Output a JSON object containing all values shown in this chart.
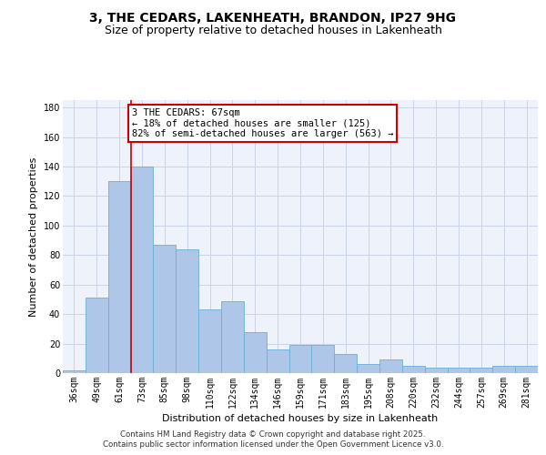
{
  "title": "3, THE CEDARS, LAKENHEATH, BRANDON, IP27 9HG",
  "subtitle": "Size of property relative to detached houses in Lakenheath",
  "xlabel": "Distribution of detached houses by size in Lakenheath",
  "ylabel": "Number of detached properties",
  "bar_labels": [
    "36sqm",
    "49sqm",
    "61sqm",
    "73sqm",
    "85sqm",
    "98sqm",
    "110sqm",
    "122sqm",
    "134sqm",
    "146sqm",
    "159sqm",
    "171sqm",
    "183sqm",
    "195sqm",
    "208sqm",
    "220sqm",
    "232sqm",
    "244sqm",
    "257sqm",
    "269sqm",
    "281sqm"
  ],
  "bar_values": [
    2,
    51,
    130,
    140,
    87,
    84,
    43,
    49,
    28,
    16,
    19,
    19,
    13,
    6,
    9,
    5,
    4,
    4,
    4,
    5,
    5
  ],
  "bar_color": "#aec6e8",
  "bar_edgecolor": "#6aafd6",
  "bar_linewidth": 0.6,
  "red_line_x": 2.5,
  "annotation_text": "3 THE CEDARS: 67sqm\n← 18% of detached houses are smaller (125)\n82% of semi-detached houses are larger (563) →",
  "annotation_box_color": "white",
  "annotation_box_edgecolor": "#cc0000",
  "ylim": [
    0,
    185
  ],
  "yticks": [
    0,
    20,
    40,
    60,
    80,
    100,
    120,
    140,
    160,
    180
  ],
  "grid_color": "#c8d4e8",
  "background_color": "#eef2fb",
  "footer_line1": "Contains HM Land Registry data © Crown copyright and database right 2025.",
  "footer_line2": "Contains public sector information licensed under the Open Government Licence v3.0.",
  "title_fontsize": 10,
  "subtitle_fontsize": 9,
  "axis_label_fontsize": 8,
  "tick_fontsize": 7,
  "annot_fontsize": 7.5,
  "footer_fontsize": 6.2
}
